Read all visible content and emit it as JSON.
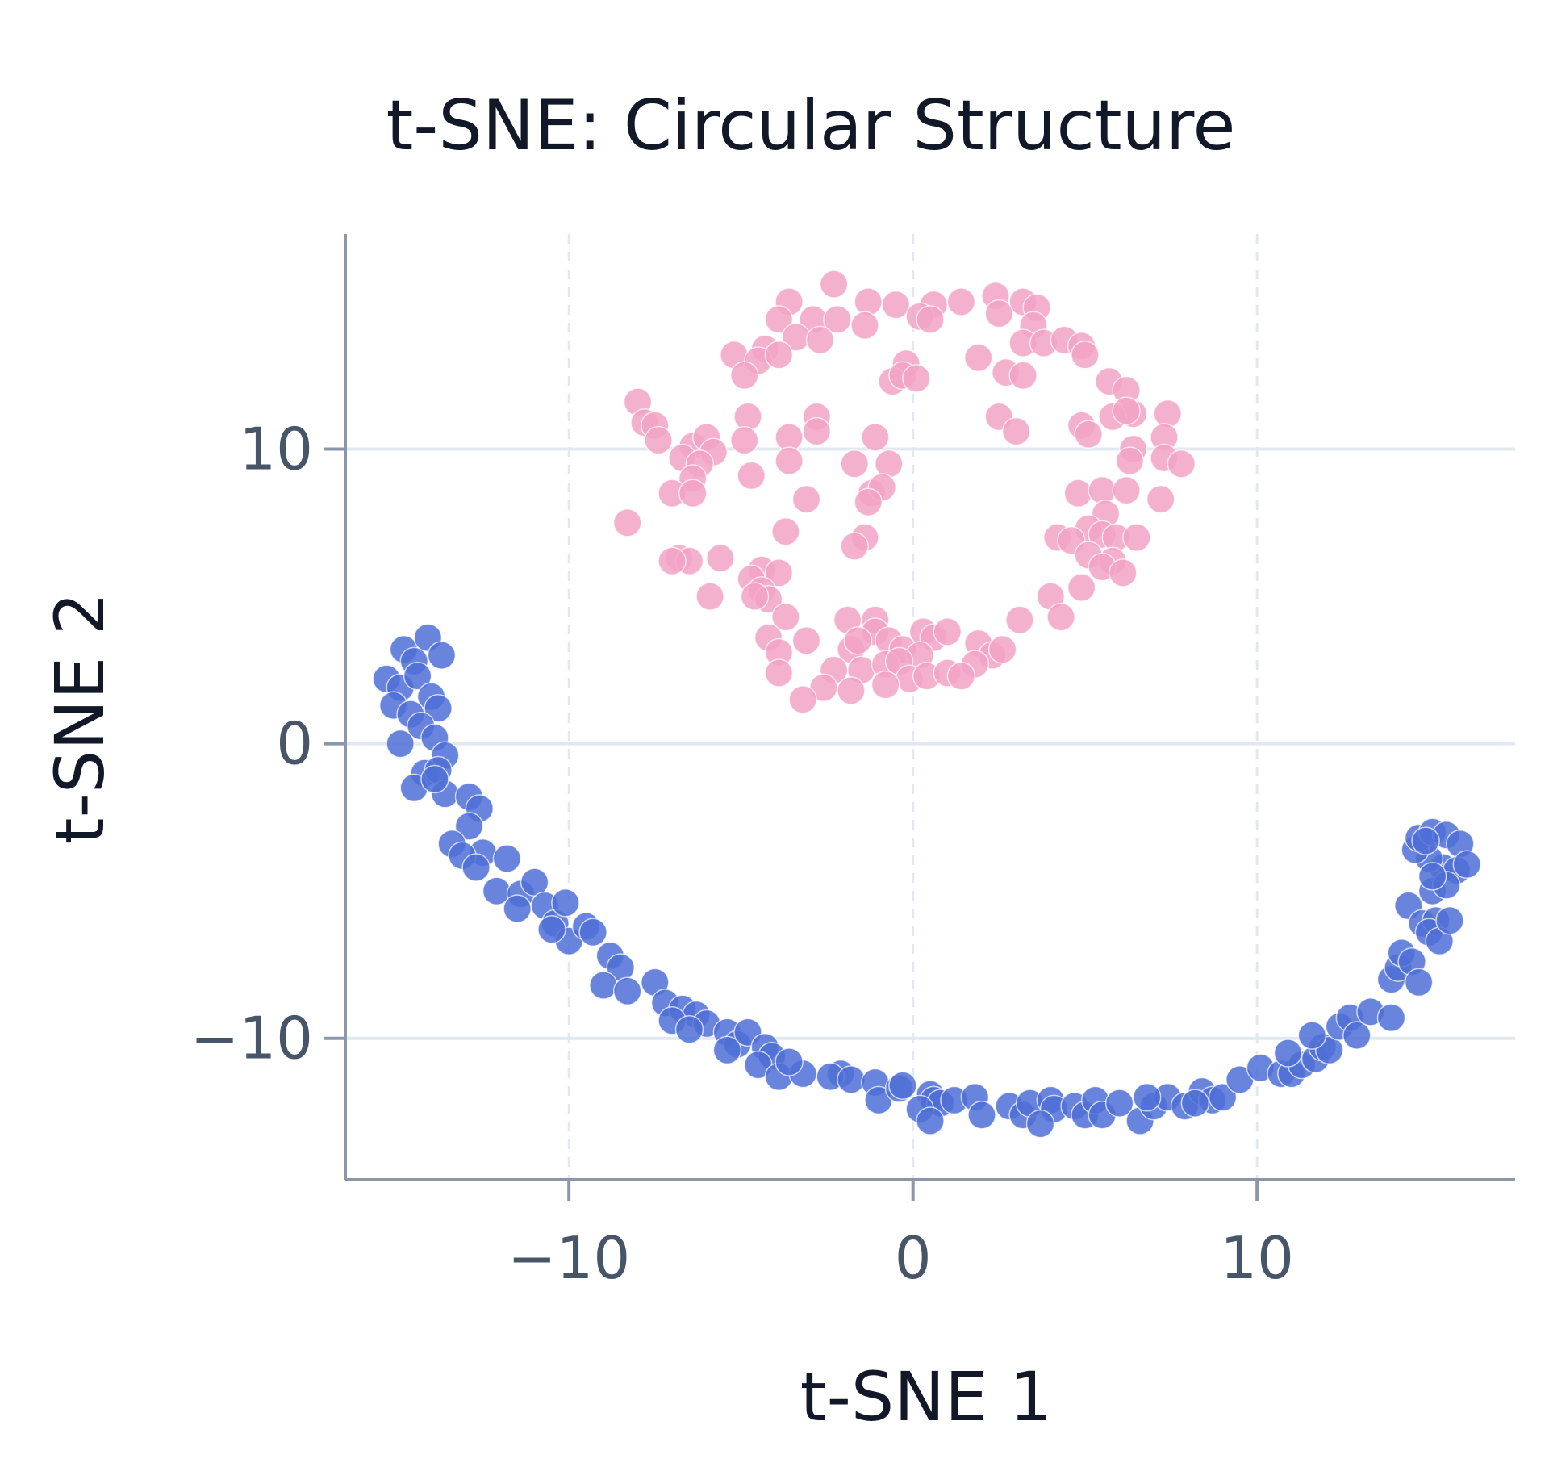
{
  "chart_data": {
    "type": "scatter",
    "title": "t-SNE: Circular Structure",
    "xlabel": "t-SNE 1",
    "ylabel": "t-SNE 2",
    "xlim": [
      -16.5,
      17.5
    ],
    "ylim": [
      -14.8,
      17.3
    ],
    "xticks": [
      -10,
      0,
      10
    ],
    "yticks": [
      -10,
      0,
      10
    ],
    "grid": true,
    "legend": "none",
    "colors": {
      "series_blue": "#4F6FD6",
      "series_pink": "#F2A3C4",
      "axis": "#8A97AA",
      "grid": "#E2E8F0",
      "tick_text": "#475569",
      "title_text": "#111827"
    },
    "series": [
      {
        "color": "#4F6FD6",
        "points": [
          [
            -14.8,
            3.2
          ],
          [
            -14.5,
            2.8
          ],
          [
            -14.1,
            3.6
          ],
          [
            -13.7,
            3.0
          ],
          [
            -15.3,
            2.2
          ],
          [
            -14.9,
            1.9
          ],
          [
            -14.4,
            2.3
          ],
          [
            -14.0,
            1.6
          ],
          [
            -15.1,
            1.3
          ],
          [
            -14.6,
            1.0
          ],
          [
            -13.8,
            1.2
          ],
          [
            -14.3,
            0.6
          ],
          [
            -14.9,
            0.0
          ],
          [
            -13.9,
            0.2
          ],
          [
            -13.6,
            -0.4
          ],
          [
            -14.2,
            -1.0
          ],
          [
            -13.8,
            -0.9
          ],
          [
            -14.5,
            -1.5
          ],
          [
            -13.6,
            -1.7
          ],
          [
            -13.9,
            -1.2
          ],
          [
            -12.9,
            -1.8
          ],
          [
            -12.6,
            -2.2
          ],
          [
            -12.9,
            -2.8
          ],
          [
            -13.4,
            -3.4
          ],
          [
            -12.5,
            -3.7
          ],
          [
            -13.1,
            -3.8
          ],
          [
            -12.7,
            -4.2
          ],
          [
            -11.8,
            -3.9
          ],
          [
            -12.1,
            -5.0
          ],
          [
            -11.4,
            -5.1
          ],
          [
            -11.0,
            -4.7
          ],
          [
            -11.5,
            -5.6
          ],
          [
            -10.7,
            -5.5
          ],
          [
            -10.4,
            -6.1
          ],
          [
            -10.1,
            -5.4
          ],
          [
            -10.0,
            -6.7
          ],
          [
            -10.5,
            -6.3
          ],
          [
            -9.5,
            -6.2
          ],
          [
            -9.3,
            -6.4
          ],
          [
            -8.8,
            -7.2
          ],
          [
            -8.5,
            -7.6
          ],
          [
            -9.0,
            -8.2
          ],
          [
            -8.3,
            -8.4
          ],
          [
            -7.5,
            -8.1
          ],
          [
            -7.2,
            -8.8
          ],
          [
            -6.7,
            -9.0
          ],
          [
            -6.3,
            -9.2
          ],
          [
            -6.0,
            -9.5
          ],
          [
            -7.0,
            -9.4
          ],
          [
            -6.5,
            -9.7
          ],
          [
            -5.4,
            -9.8
          ],
          [
            -5.1,
            -10.2
          ],
          [
            -4.8,
            -9.8
          ],
          [
            -4.3,
            -10.3
          ],
          [
            -4.1,
            -10.6
          ],
          [
            -4.5,
            -10.9
          ],
          [
            -5.4,
            -10.4
          ],
          [
            -3.9,
            -11.3
          ],
          [
            -3.2,
            -11.2
          ],
          [
            -3.6,
            -10.8
          ],
          [
            -2.1,
            -11.2
          ],
          [
            -2.4,
            -11.3
          ],
          [
            -1.8,
            -11.4
          ],
          [
            -1.1,
            -11.5
          ],
          [
            -1.0,
            -12.1
          ],
          [
            -0.4,
            -11.7
          ],
          [
            -0.3,
            -11.6
          ],
          [
            0.5,
            -11.9
          ],
          [
            0.6,
            -12.1
          ],
          [
            0.8,
            -12.2
          ],
          [
            0.2,
            -12.4
          ],
          [
            0.5,
            -12.8
          ],
          [
            1.2,
            -12.1
          ],
          [
            1.8,
            -12.0
          ],
          [
            2.0,
            -12.6
          ],
          [
            2.8,
            -12.3
          ],
          [
            3.2,
            -12.6
          ],
          [
            3.4,
            -12.2
          ],
          [
            4.0,
            -12.1
          ],
          [
            4.1,
            -12.4
          ],
          [
            3.7,
            -12.9
          ],
          [
            4.7,
            -12.3
          ],
          [
            5.0,
            -12.6
          ],
          [
            5.3,
            -12.1
          ],
          [
            5.5,
            -12.6
          ],
          [
            6.0,
            -12.2
          ],
          [
            6.6,
            -12.8
          ],
          [
            7.0,
            -12.3
          ],
          [
            7.4,
            -12.0
          ],
          [
            7.9,
            -12.3
          ],
          [
            6.8,
            -12.0
          ],
          [
            8.4,
            -11.8
          ],
          [
            8.7,
            -12.1
          ],
          [
            8.2,
            -12.2
          ],
          [
            9.0,
            -12.0
          ],
          [
            9.5,
            -11.4
          ],
          [
            10.1,
            -11.0
          ],
          [
            10.7,
            -11.2
          ],
          [
            11.0,
            -11.2
          ],
          [
            11.3,
            -10.9
          ],
          [
            10.9,
            -10.5
          ],
          [
            11.7,
            -10.7
          ],
          [
            11.9,
            -10.3
          ],
          [
            12.1,
            -10.4
          ],
          [
            11.6,
            -9.9
          ],
          [
            12.4,
            -9.6
          ],
          [
            12.7,
            -9.3
          ],
          [
            12.9,
            -9.9
          ],
          [
            13.3,
            -9.1
          ],
          [
            13.9,
            -9.3
          ],
          [
            13.9,
            -8.0
          ],
          [
            14.1,
            -7.6
          ],
          [
            14.2,
            -7.1
          ],
          [
            14.5,
            -7.4
          ],
          [
            14.7,
            -8.1
          ],
          [
            14.4,
            -5.5
          ],
          [
            14.8,
            -6.1
          ],
          [
            15.2,
            -6.0
          ],
          [
            15.0,
            -6.4
          ],
          [
            15.3,
            -6.7
          ],
          [
            15.1,
            -5.0
          ],
          [
            15.4,
            -4.2
          ],
          [
            15.0,
            -3.9
          ],
          [
            14.6,
            -3.6
          ],
          [
            14.7,
            -3.2
          ],
          [
            15.1,
            -3.0
          ],
          [
            15.5,
            -3.1
          ],
          [
            15.9,
            -3.4
          ],
          [
            15.8,
            -4.3
          ],
          [
            16.1,
            -4.1
          ],
          [
            15.5,
            -4.8
          ],
          [
            15.1,
            -4.5
          ],
          [
            14.9,
            -3.3
          ],
          [
            15.6,
            -6.0
          ]
        ]
      },
      {
        "color": "#F2A3C4",
        "points": [
          [
            -2.3,
            15.6
          ],
          [
            -3.6,
            15.0
          ],
          [
            -1.3,
            15.0
          ],
          [
            -0.5,
            14.9
          ],
          [
            0.6,
            14.9
          ],
          [
            1.4,
            15.0
          ],
          [
            2.4,
            15.2
          ],
          [
            3.2,
            15.0
          ],
          [
            3.6,
            14.8
          ],
          [
            -3.9,
            14.4
          ],
          [
            -2.9,
            14.4
          ],
          [
            -2.2,
            14.4
          ],
          [
            0.2,
            14.5
          ],
          [
            0.5,
            14.4
          ],
          [
            2.5,
            14.6
          ],
          [
            3.5,
            14.2
          ],
          [
            -4.3,
            13.4
          ],
          [
            -3.4,
            13.8
          ],
          [
            -2.7,
            13.7
          ],
          [
            -1.4,
            14.2
          ],
          [
            3.2,
            13.6
          ],
          [
            3.8,
            13.6
          ],
          [
            4.4,
            13.7
          ],
          [
            -5.2,
            13.2
          ],
          [
            -4.5,
            13.0
          ],
          [
            -3.9,
            13.2
          ],
          [
            -0.2,
            12.9
          ],
          [
            1.9,
            13.1
          ],
          [
            4.9,
            13.5
          ],
          [
            5.0,
            13.2
          ],
          [
            -4.9,
            12.5
          ],
          [
            -0.6,
            12.3
          ],
          [
            -0.3,
            12.5
          ],
          [
            0.1,
            12.4
          ],
          [
            2.7,
            12.6
          ],
          [
            3.2,
            12.5
          ],
          [
            5.7,
            12.3
          ],
          [
            6.2,
            12.0
          ],
          [
            -8.0,
            11.6
          ],
          [
            -7.8,
            10.9
          ],
          [
            -4.8,
            11.1
          ],
          [
            -2.8,
            11.1
          ],
          [
            6.4,
            11.2
          ],
          [
            5.8,
            11.1
          ],
          [
            6.2,
            11.3
          ],
          [
            7.4,
            11.2
          ],
          [
            2.5,
            11.1
          ],
          [
            -7.5,
            10.8
          ],
          [
            -7.4,
            10.3
          ],
          [
            -6.4,
            10.1
          ],
          [
            -6.0,
            10.4
          ],
          [
            -4.9,
            10.3
          ],
          [
            -3.6,
            10.4
          ],
          [
            -2.8,
            10.6
          ],
          [
            -1.1,
            10.4
          ],
          [
            3.0,
            10.6
          ],
          [
            4.9,
            10.8
          ],
          [
            5.1,
            10.5
          ],
          [
            6.4,
            10.0
          ],
          [
            7.3,
            10.4
          ],
          [
            -6.7,
            9.7
          ],
          [
            -5.8,
            9.9
          ],
          [
            -6.2,
            9.5
          ],
          [
            -3.6,
            9.6
          ],
          [
            -1.7,
            9.5
          ],
          [
            -0.7,
            9.5
          ],
          [
            6.3,
            9.6
          ],
          [
            7.3,
            9.7
          ],
          [
            7.8,
            9.5
          ],
          [
            -6.4,
            9.0
          ],
          [
            -4.7,
            9.1
          ],
          [
            -7.0,
            8.5
          ],
          [
            -6.4,
            8.5
          ],
          [
            -1.2,
            8.5
          ],
          [
            -0.9,
            8.7
          ],
          [
            4.8,
            8.5
          ],
          [
            5.5,
            8.6
          ],
          [
            6.2,
            8.6
          ],
          [
            -3.1,
            8.3
          ],
          [
            -1.3,
            8.2
          ],
          [
            7.2,
            8.3
          ],
          [
            5.6,
            7.8
          ],
          [
            5.1,
            7.3
          ],
          [
            -8.3,
            7.5
          ],
          [
            -3.7,
            7.2
          ],
          [
            -1.4,
            7.0
          ],
          [
            4.2,
            7.0
          ],
          [
            4.6,
            6.9
          ],
          [
            5.5,
            7.1
          ],
          [
            5.9,
            7.0
          ],
          [
            6.5,
            7.0
          ],
          [
            -1.7,
            6.7
          ],
          [
            -6.8,
            6.3
          ],
          [
            -6.5,
            6.2
          ],
          [
            -5.6,
            6.3
          ],
          [
            -7.0,
            6.2
          ],
          [
            5.1,
            6.4
          ],
          [
            5.8,
            6.2
          ],
          [
            5.5,
            6.0
          ],
          [
            6.1,
            5.8
          ],
          [
            -4.4,
            5.9
          ],
          [
            -3.9,
            5.8
          ],
          [
            -4.7,
            5.6
          ],
          [
            -4.4,
            5.2
          ],
          [
            -4.2,
            4.9
          ],
          [
            -4.6,
            5.0
          ],
          [
            -5.9,
            5.0
          ],
          [
            4.0,
            5.0
          ],
          [
            4.9,
            5.3
          ],
          [
            -3.7,
            4.3
          ],
          [
            -1.9,
            4.2
          ],
          [
            -1.1,
            4.2
          ],
          [
            -1.1,
            3.8
          ],
          [
            0.3,
            3.8
          ],
          [
            0.6,
            3.6
          ],
          [
            1.0,
            3.8
          ],
          [
            1.9,
            3.4
          ],
          [
            3.1,
            4.2
          ],
          [
            4.3,
            4.3
          ],
          [
            -4.2,
            3.6
          ],
          [
            -3.9,
            3.1
          ],
          [
            -3.1,
            3.5
          ],
          [
            -1.8,
            3.2
          ],
          [
            -1.6,
            3.5
          ],
          [
            -0.7,
            3.5
          ],
          [
            -0.3,
            3.2
          ],
          [
            0.2,
            3.0
          ],
          [
            2.3,
            3.0
          ],
          [
            2.6,
            3.2
          ],
          [
            -3.9,
            2.4
          ],
          [
            -2.3,
            2.5
          ],
          [
            -1.5,
            2.5
          ],
          [
            -0.8,
            2.7
          ],
          [
            -0.4,
            2.8
          ],
          [
            -0.1,
            2.2
          ],
          [
            0.4,
            2.3
          ],
          [
            1.0,
            2.4
          ],
          [
            1.8,
            2.7
          ],
          [
            -2.6,
            1.9
          ],
          [
            -1.8,
            1.8
          ],
          [
            -3.2,
            1.5
          ],
          [
            -0.8,
            2.0
          ],
          [
            1.4,
            2.3
          ]
        ]
      }
    ]
  }
}
